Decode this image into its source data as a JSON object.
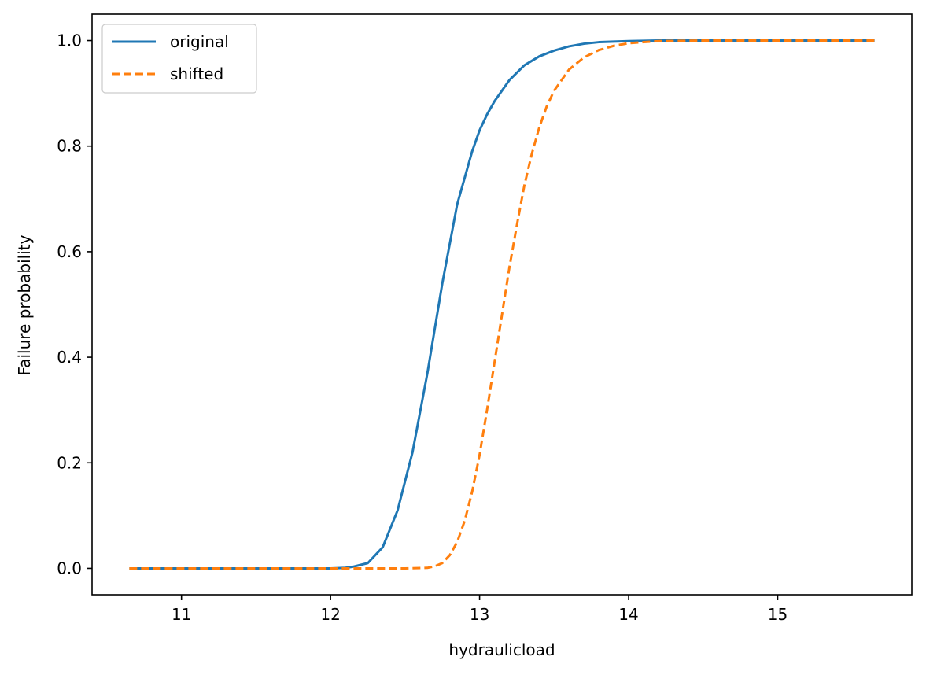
{
  "chart_data": {
    "type": "line",
    "xlabel": "hydraulicload",
    "ylabel": "Failure probability",
    "xlim": [
      10.4,
      15.9
    ],
    "ylim": [
      -0.05,
      1.05
    ],
    "xticks": [
      11,
      12,
      13,
      14,
      15
    ],
    "yticks": [
      0.0,
      0.2,
      0.4,
      0.6,
      0.8,
      1.0
    ],
    "xtick_labels": [
      "11",
      "12",
      "13",
      "14",
      "15"
    ],
    "ytick_labels": [
      "0.0",
      "0.2",
      "0.4",
      "0.6",
      "0.8",
      "1.0"
    ],
    "grid": false,
    "legend_position": "top-left",
    "series": [
      {
        "name": "original",
        "color": "#1f77b4",
        "dash": "solid",
        "x": [
          10.65,
          11.0,
          11.5,
          12.0,
          12.1,
          12.15,
          12.25,
          12.35,
          12.45,
          12.55,
          12.65,
          12.75,
          12.85,
          12.95,
          13.0,
          13.05,
          13.1,
          13.2,
          13.3,
          13.4,
          13.5,
          13.6,
          13.7,
          13.8,
          13.9,
          14.0,
          14.2,
          14.5,
          15.0,
          15.65
        ],
        "y": [
          0.0,
          0.0,
          0.0,
          0.0,
          0.001,
          0.003,
          0.01,
          0.04,
          0.11,
          0.22,
          0.37,
          0.54,
          0.69,
          0.79,
          0.83,
          0.86,
          0.885,
          0.925,
          0.953,
          0.97,
          0.981,
          0.989,
          0.994,
          0.997,
          0.998,
          0.999,
          1.0,
          1.0,
          1.0,
          1.0
        ]
      },
      {
        "name": "shifted",
        "color": "#ff7f0e",
        "dash": "dashed",
        "x": [
          10.65,
          11.0,
          11.5,
          12.0,
          12.5,
          12.65,
          12.7,
          12.75,
          12.8,
          12.85,
          12.9,
          12.95,
          13.0,
          13.05,
          13.1,
          13.15,
          13.2,
          13.25,
          13.3,
          13.35,
          13.4,
          13.45,
          13.5,
          13.6,
          13.7,
          13.8,
          13.9,
          14.0,
          14.2,
          14.5,
          15.0,
          15.65
        ],
        "y": [
          0.0,
          0.0,
          0.0,
          0.0,
          0.0,
          0.001,
          0.004,
          0.01,
          0.025,
          0.05,
          0.09,
          0.145,
          0.215,
          0.3,
          0.39,
          0.48,
          0.57,
          0.65,
          0.725,
          0.785,
          0.835,
          0.875,
          0.905,
          0.945,
          0.968,
          0.982,
          0.99,
          0.995,
          0.999,
          1.0,
          1.0,
          1.0
        ]
      }
    ]
  }
}
